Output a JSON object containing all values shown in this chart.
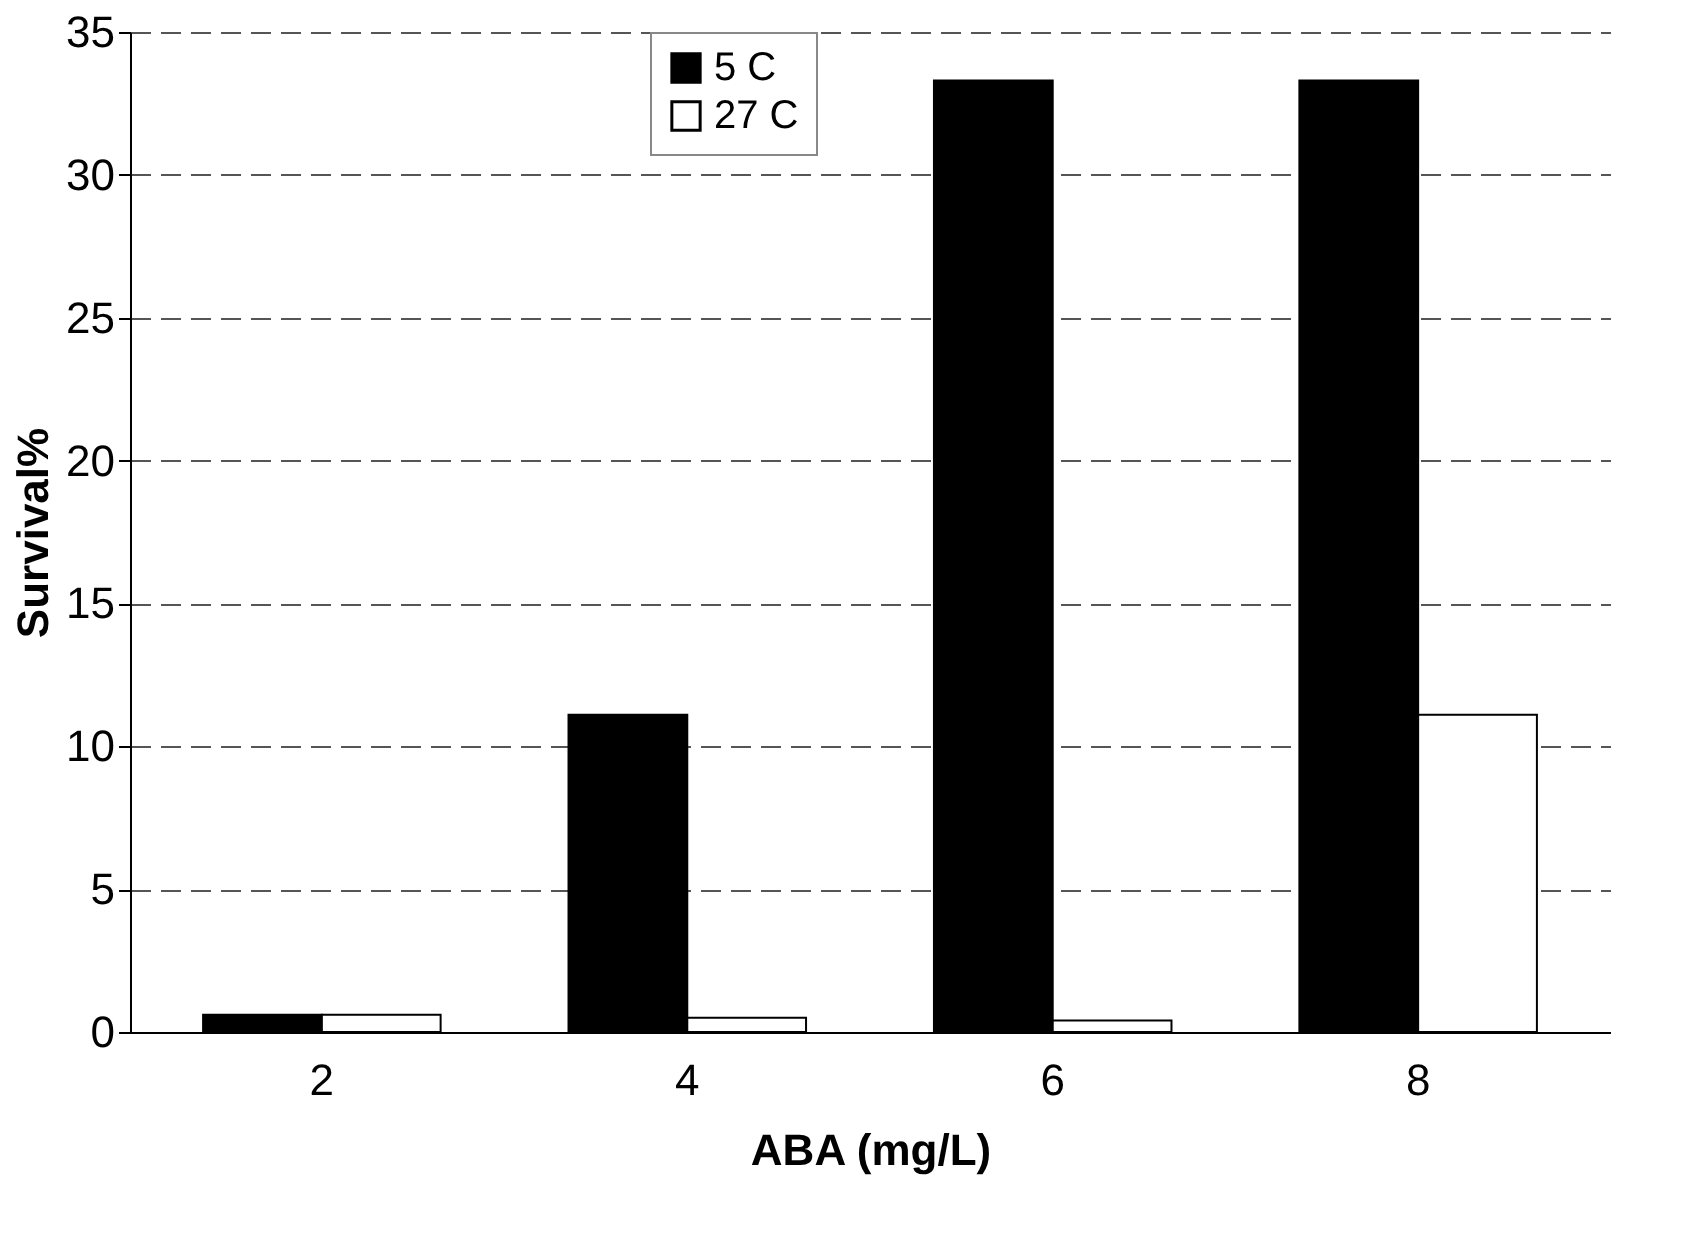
{
  "chart_data": {
    "type": "bar",
    "xlabel": "ABA (mg/L)",
    "ylabel": "Survival%",
    "categories": [
      "2",
      "4",
      "6",
      "8"
    ],
    "series": [
      {
        "name": "5 C",
        "color": "#000000",
        "values": [
          0.6,
          11.1,
          33.3,
          33.3
        ]
      },
      {
        "name": "27 C",
        "color": "#ffffff",
        "values": [
          0.6,
          0.5,
          0.4,
          11.1
        ]
      }
    ],
    "ylim": [
      0,
      35
    ],
    "yticks": [
      0,
      5,
      10,
      15,
      20,
      25,
      30,
      35
    ],
    "grid": "y",
    "legend": "top"
  }
}
